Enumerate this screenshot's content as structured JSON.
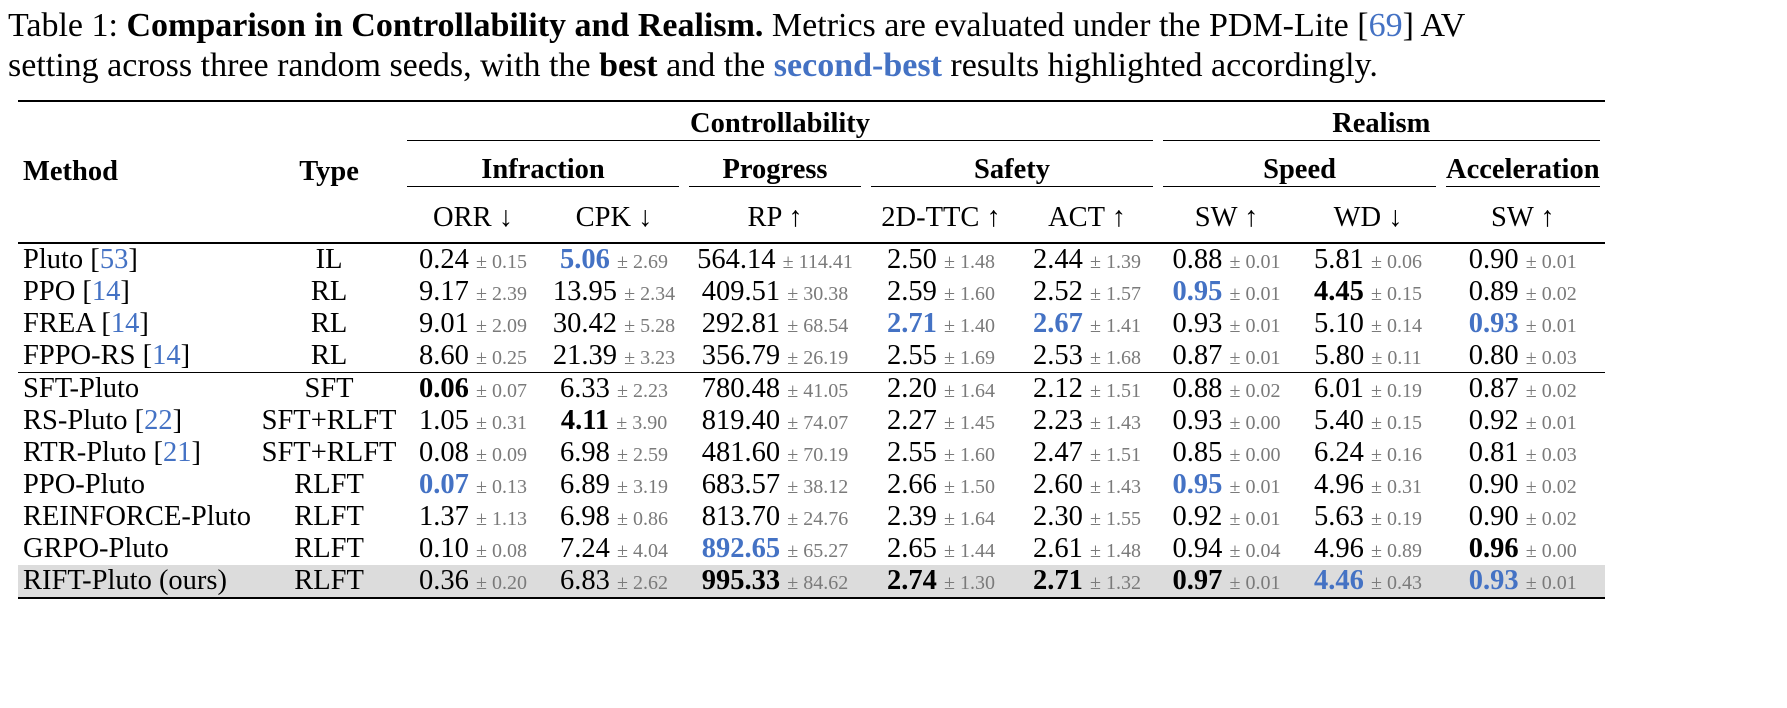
{
  "caption": {
    "label": "Table 1:",
    "title": "Comparison in Controllability and Realism.",
    "text1": " Metrics are evaluated under the PDM-Lite [",
    "ref1": "69",
    "text2": "] AV",
    "text3": "setting across three random seeds, with the ",
    "best": "best",
    "text4": " and the ",
    "second_best": "second-best",
    "text5": " results highlighted accordingly."
  },
  "headers": {
    "method": "Method",
    "type": "Type",
    "controllability": "Controllability",
    "realism": "Realism",
    "infraction": "Infraction",
    "progress": "Progress",
    "safety": "Safety",
    "speed": "Speed",
    "acceleration": "Acceleration",
    "metrics": [
      "ORR ↓",
      "CPK ↓",
      "RP ↑",
      "2D-TTC ↑",
      "ACT ↑",
      "SW ↑",
      "WD ↓",
      "SW ↑"
    ]
  },
  "colors": {
    "second_best": "#4472c4",
    "highlight_row": "#dcdcdc"
  },
  "rows": [
    {
      "method": "Pluto [",
      "ref": "53",
      "close": "]",
      "type": "IL",
      "v": [
        "0.24",
        "5.06",
        "564.14",
        "2.50",
        "2.44",
        "0.88",
        "5.81",
        "0.90"
      ],
      "s": [
        "± 0.15",
        "± 2.69",
        "± 114.41",
        "± 1.48",
        "± 1.39",
        "± 0.01",
        "± 0.06",
        "± 0.01"
      ],
      "m": [
        "",
        "blue",
        "",
        "",
        "",
        "",
        "",
        ""
      ]
    },
    {
      "method": "PPO [",
      "ref": "14",
      "close": "]",
      "type": "RL",
      "v": [
        "9.17",
        "13.95",
        "409.51",
        "2.59",
        "2.52",
        "0.95",
        "4.45",
        "0.89"
      ],
      "s": [
        "± 2.39",
        "± 2.34",
        "± 30.38",
        "± 1.60",
        "± 1.57",
        "± 0.01",
        "± 0.15",
        "± 0.02"
      ],
      "m": [
        "",
        "",
        "",
        "",
        "",
        "blue",
        "bold",
        ""
      ]
    },
    {
      "method": "FREA [",
      "ref": "14",
      "close": "]",
      "type": "RL",
      "v": [
        "9.01",
        "30.42",
        "292.81",
        "2.71",
        "2.67",
        "0.93",
        "5.10",
        "0.93"
      ],
      "s": [
        "± 2.09",
        "± 5.28",
        "± 68.54",
        "± 1.40",
        "± 1.41",
        "± 0.01",
        "± 0.14",
        "± 0.01"
      ],
      "m": [
        "",
        "",
        "",
        "blue",
        "blue",
        "",
        "",
        "blue"
      ]
    },
    {
      "method": "FPPO-RS [",
      "ref": "14",
      "close": "]",
      "type": "RL",
      "v": [
        "8.60",
        "21.39",
        "356.79",
        "2.55",
        "2.53",
        "0.87",
        "5.80",
        "0.80"
      ],
      "s": [
        "± 0.25",
        "± 3.23",
        "± 26.19",
        "± 1.69",
        "± 1.68",
        "± 0.01",
        "± 0.11",
        "± 0.03"
      ],
      "m": [
        "",
        "",
        "",
        "",
        "",
        "",
        "",
        ""
      ]
    },
    {
      "method": "SFT-Pluto",
      "ref": "",
      "close": "",
      "type": "SFT",
      "v": [
        "0.06",
        "6.33",
        "780.48",
        "2.20",
        "2.12",
        "0.88",
        "6.01",
        "0.87"
      ],
      "s": [
        "± 0.07",
        "± 2.23",
        "± 41.05",
        "± 1.64",
        "± 1.51",
        "± 0.02",
        "± 0.19",
        "± 0.02"
      ],
      "m": [
        "bold",
        "",
        "",
        "",
        "",
        "",
        "",
        ""
      ]
    },
    {
      "method": "RS-Pluto [",
      "ref": "22",
      "close": "]",
      "type": "SFT+RLFT",
      "v": [
        "1.05",
        "4.11",
        "819.40",
        "2.27",
        "2.23",
        "0.93",
        "5.40",
        "0.92"
      ],
      "s": [
        "± 0.31",
        "± 3.90",
        "± 74.07",
        "± 1.45",
        "± 1.43",
        "± 0.00",
        "± 0.15",
        "± 0.01"
      ],
      "m": [
        "",
        "bold",
        "",
        "",
        "",
        "",
        "",
        ""
      ]
    },
    {
      "method": "RTR-Pluto [",
      "ref": "21",
      "close": "]",
      "type": "SFT+RLFT",
      "v": [
        "0.08",
        "6.98",
        "481.60",
        "2.55",
        "2.47",
        "0.85",
        "6.24",
        "0.81"
      ],
      "s": [
        "± 0.09",
        "± 2.59",
        "± 70.19",
        "± 1.60",
        "± 1.51",
        "± 0.00",
        "± 0.16",
        "± 0.03"
      ],
      "m": [
        "",
        "",
        "",
        "",
        "",
        "",
        "",
        ""
      ]
    },
    {
      "method": "PPO-Pluto",
      "ref": "",
      "close": "",
      "type": "RLFT",
      "v": [
        "0.07",
        "6.89",
        "683.57",
        "2.66",
        "2.60",
        "0.95",
        "4.96",
        "0.90"
      ],
      "s": [
        "± 0.13",
        "± 3.19",
        "± 38.12",
        "± 1.50",
        "± 1.43",
        "± 0.01",
        "± 0.31",
        "± 0.02"
      ],
      "m": [
        "blue",
        "",
        "",
        "",
        "",
        "blue",
        "",
        ""
      ]
    },
    {
      "method": "REINFORCE-Pluto",
      "ref": "",
      "close": "",
      "type": "RLFT",
      "v": [
        "1.37",
        "6.98",
        "813.70",
        "2.39",
        "2.30",
        "0.92",
        "5.63",
        "0.90"
      ],
      "s": [
        "± 1.13",
        "± 0.86",
        "± 24.76",
        "± 1.64",
        "± 1.55",
        "± 0.01",
        "± 0.19",
        "± 0.02"
      ],
      "m": [
        "",
        "",
        "",
        "",
        "",
        "",
        "",
        ""
      ]
    },
    {
      "method": "GRPO-Pluto",
      "ref": "",
      "close": "",
      "type": "RLFT",
      "v": [
        "0.10",
        "7.24",
        "892.65",
        "2.65",
        "2.61",
        "0.94",
        "4.96",
        "0.96"
      ],
      "s": [
        "± 0.08",
        "± 4.04",
        "± 65.27",
        "± 1.44",
        "± 1.48",
        "± 0.04",
        "± 0.89",
        "± 0.00"
      ],
      "m": [
        "",
        "",
        "blue",
        "",
        "",
        "",
        "",
        "bold"
      ]
    },
    {
      "method": "RIFT-Pluto (ours)",
      "ref": "",
      "close": "",
      "type": "RLFT",
      "v": [
        "0.36",
        "6.83",
        "995.33",
        "2.74",
        "2.71",
        "0.97",
        "4.46",
        "0.93"
      ],
      "s": [
        "± 0.20",
        "± 2.62",
        "± 84.62",
        "± 1.30",
        "± 1.32",
        "± 0.01",
        "± 0.43",
        "± 0.01"
      ],
      "m": [
        "",
        "",
        "bold",
        "bold",
        "bold",
        "bold",
        "blue",
        "blue"
      ],
      "highlight": true
    }
  ]
}
